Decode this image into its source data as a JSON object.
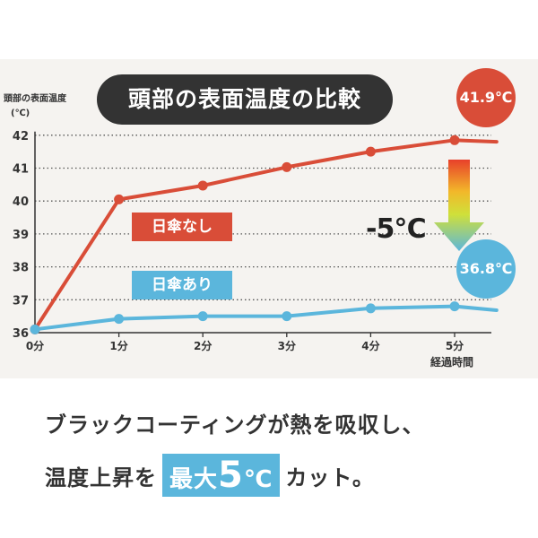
{
  "colors": {
    "red": "#d94d38",
    "blue": "#5bb6dc",
    "dark": "#333333",
    "panel": "#f5f3f0"
  },
  "chart_data": {
    "type": "line",
    "title": "頭部の表面温度の比較",
    "ylabel": "頭部の表面温度",
    "yunit": "(℃)",
    "xlabel": "経過時間",
    "x_tick_labels": [
      "0分",
      "1分",
      "2分",
      "3分",
      "4分",
      "5分"
    ],
    "x": [
      0,
      1,
      2,
      3,
      4,
      5,
      5.5
    ],
    "y_tick_labels": [
      "36",
      "37",
      "38",
      "39",
      "40",
      "41",
      "42"
    ],
    "ylim": [
      36,
      42
    ],
    "grid": "horizontal dotted",
    "series": [
      {
        "name": "日傘なし",
        "color": "#d94d38",
        "values": [
          36.1,
          40.05,
          40.47,
          41.03,
          41.5,
          41.85,
          41.8
        ]
      },
      {
        "name": "日傘あり",
        "color": "#5bb6dc",
        "values": [
          36.1,
          36.42,
          36.5,
          36.5,
          36.74,
          36.8,
          36.68
        ]
      }
    ],
    "annotations": {
      "max_red": "41.9℃",
      "max_blue": "36.8℃",
      "difference": "-5℃"
    }
  },
  "caption": {
    "line1": "ブラックコーティングが熱を吸収し、",
    "line2_pre": "温度上昇を",
    "highlight_1": "最大",
    "highlight_2": "5",
    "highlight_3": "℃",
    "line2_post": "カット。"
  }
}
